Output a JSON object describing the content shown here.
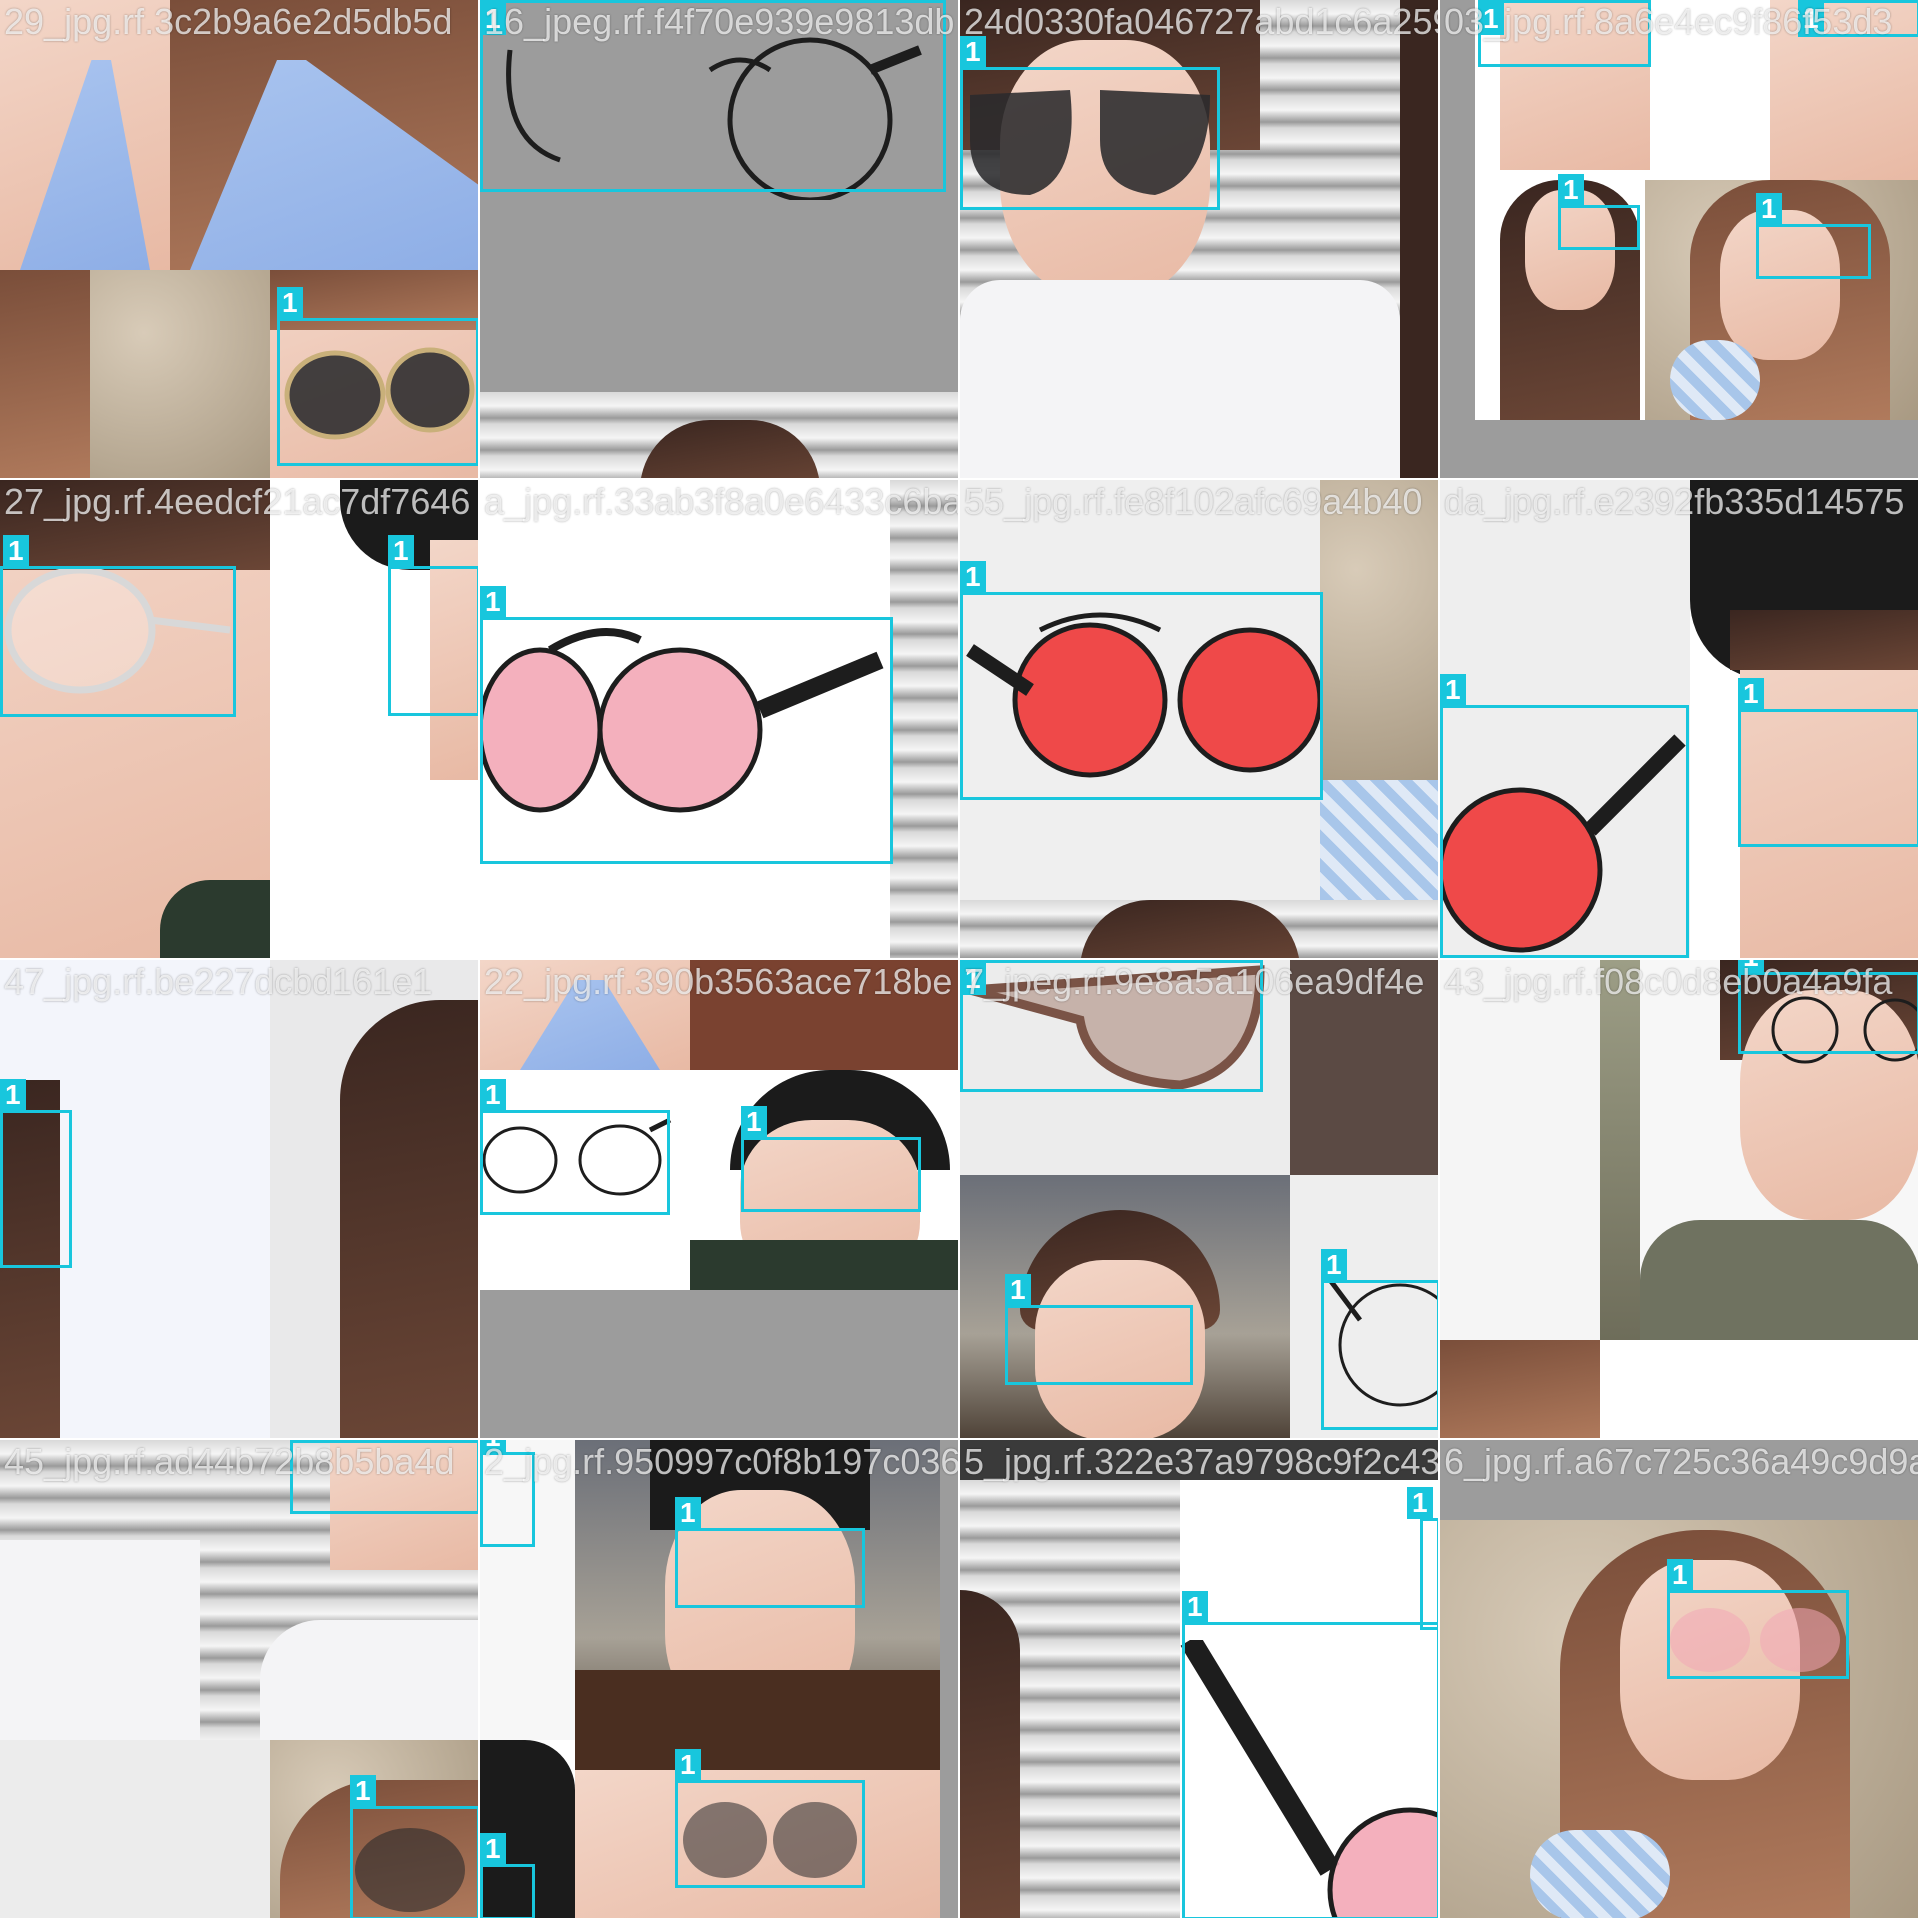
{
  "box_class_label": "1",
  "accent_color": "#18c6dd",
  "tiles": [
    {
      "id": "r0c0",
      "filename": "29_jpg.rf.3c2b9a6e2d5db5d",
      "boxes": [
        {
          "label": "1"
        }
      ]
    },
    {
      "id": "r0c1",
      "filename": "16_jpeg.rf.f4f70e939e9813db",
      "boxes": [
        {
          "label": "1"
        }
      ]
    },
    {
      "id": "r0c2",
      "filename": "24d0330fa046727abd1c6a259a",
      "boxes": [
        {
          "label": "1"
        }
      ]
    },
    {
      "id": "r0c3",
      "filename": "03_jpg.rf.8a6e4ec9f86f53d3",
      "boxes": [
        {
          "label": "1"
        },
        {
          "label": "1"
        },
        {
          "label": "1"
        },
        {
          "label": "1"
        }
      ]
    },
    {
      "id": "r1c0",
      "filename": "27_jpg.rf.4eedcf21ac7df7646",
      "boxes": [
        {
          "label": "1"
        },
        {
          "label": "1"
        }
      ]
    },
    {
      "id": "r1c1",
      "filename": "a_jpg.rf.33ab3f8a0e6433c6ba4e",
      "boxes": [
        {
          "label": "1"
        }
      ]
    },
    {
      "id": "r1c2",
      "filename": "55_jpg.rf.fe8f102afc69a4b40",
      "boxes": [
        {
          "label": "1"
        }
      ]
    },
    {
      "id": "r1c3",
      "filename": "da_jpg.rf.e2392fb335d14575",
      "boxes": [
        {
          "label": "1"
        },
        {
          "label": "1"
        }
      ]
    },
    {
      "id": "r2c0",
      "filename": "47_jpg.rf.be227dcbd161e1",
      "boxes": [
        {
          "label": "1"
        }
      ]
    },
    {
      "id": "r2c1",
      "filename": "22_jpg.rf.390b3563ace718be",
      "boxes": [
        {
          "label": "1"
        },
        {
          "label": "1"
        }
      ]
    },
    {
      "id": "r2c2",
      "filename": "7_jpeg.rf.9e8a5a106ea9df4e",
      "boxes": [
        {
          "label": "1"
        },
        {
          "label": "1"
        },
        {
          "label": "1"
        }
      ]
    },
    {
      "id": "r2c3",
      "filename": "43_jpg.rf.f08c0d8eb0a4a9fa",
      "boxes": [
        {
          "label": "1"
        }
      ]
    },
    {
      "id": "r3c0",
      "filename": "45_jpg.rf.ad44b72b8b5ba4d",
      "boxes": [
        {
          "label": "1"
        },
        {
          "label": "1"
        }
      ]
    },
    {
      "id": "r3c1",
      "filename": "2_jpg.rf.950997c0f8b197c036",
      "boxes": [
        {
          "label": "1"
        },
        {
          "label": "1"
        },
        {
          "label": "1"
        },
        {
          "label": "1"
        }
      ]
    },
    {
      "id": "r3c2",
      "filename": "5_jpg.rf.322e37a9798c9f2c43",
      "boxes": [
        {
          "label": "1"
        },
        {
          "label": "1"
        }
      ]
    },
    {
      "id": "r3c3",
      "filename": "6_jpg.rf.a67c725c36a49c9d9a",
      "boxes": [
        {
          "label": "1"
        }
      ]
    }
  ]
}
